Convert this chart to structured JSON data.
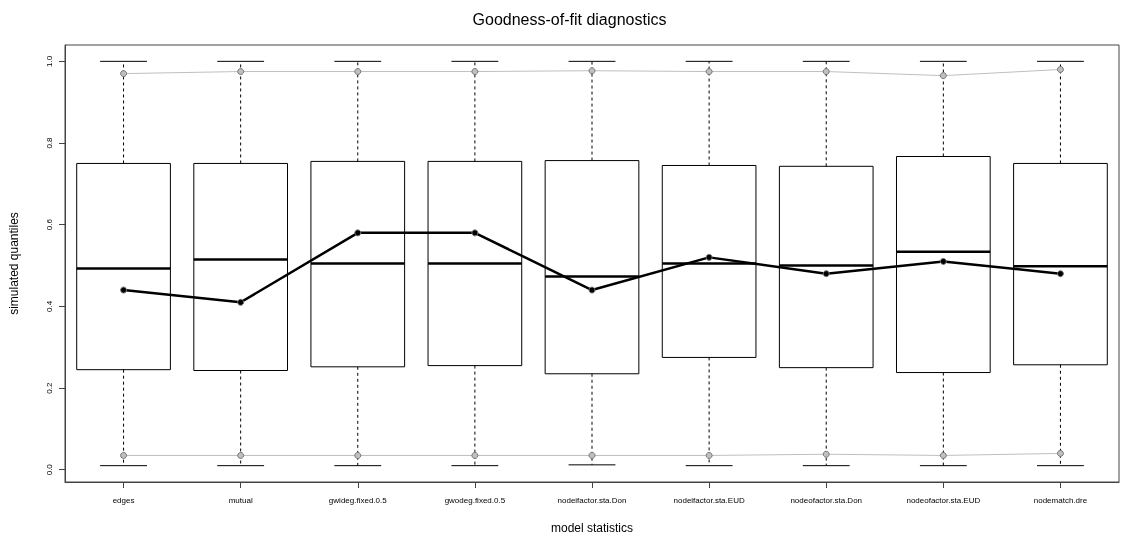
{
  "chart_data": {
    "type": "box",
    "title": "Goodness-of-fit diagnostics",
    "xlabel": "model statistics",
    "ylabel": "simulated quantiles",
    "categories": [
      "edges",
      "mutual",
      "gwideg.fixed.0.5",
      "gwodeg.fixed.0.5",
      "nodeifactor.sta.Don",
      "nodeifactor.sta.EUD",
      "nodeofactor.sta.Don",
      "nodeofactor.sta.EUD",
      "nodematch.dre"
    ],
    "ylim": [
      -0.03,
      1.04
    ],
    "yticks": [
      {
        "value": 0,
        "label": "0.0"
      },
      0.2,
      0.4,
      0.6,
      0.8,
      {
        "value": 1,
        "label": "1.0"
      }
    ],
    "grid": false,
    "marker": "circle",
    "line_style": "solid",
    "series": [
      {
        "color": "#000000",
        "boxes": [
          {
            "low": 0.01,
            "q1": 0.245,
            "median": 0.493,
            "q3": 0.75,
            "high": 1.0
          },
          {
            "low": 0.01,
            "q1": 0.243,
            "median": 0.515,
            "q3": 0.75,
            "high": 1.0
          },
          {
            "low": 0.01,
            "q1": 0.252,
            "median": 0.505,
            "q3": 0.755,
            "high": 1.0
          },
          {
            "low": 0.01,
            "q1": 0.255,
            "median": 0.505,
            "q3": 0.755,
            "high": 1.0
          },
          {
            "low": 0.012,
            "q1": 0.235,
            "median": 0.473,
            "q3": 0.757,
            "high": 1.0
          },
          {
            "low": 0.01,
            "q1": 0.275,
            "median": 0.505,
            "q3": 0.745,
            "high": 1.0
          },
          {
            "low": 0.01,
            "q1": 0.25,
            "median": 0.5,
            "q3": 0.743,
            "high": 1.0
          },
          {
            "low": 0.01,
            "q1": 0.238,
            "median": 0.534,
            "q3": 0.767,
            "high": 1.0
          },
          {
            "low": 0.01,
            "q1": 0.257,
            "median": 0.498,
            "q3": 0.75,
            "high": 1.0
          }
        ]
      },
      {
        "type": "line",
        "color": "#bfbfbf",
        "values": [
          0.97,
          0.975,
          0.975,
          0.975,
          0.977,
          0.975,
          0.975,
          0.965,
          0.98
        ]
      },
      {
        "type": "line",
        "color": "#bfbfbf",
        "values": [
          0.035,
          0.035,
          0.035,
          0.035,
          0.035,
          0.035,
          0.038,
          0.035,
          0.04
        ]
      },
      {
        "type": "line",
        "color": "#000000",
        "values": [
          0.44,
          0.41,
          0.58,
          0.58,
          0.44,
          0.52,
          0.48,
          0.51,
          0.48
        ]
      }
    ]
  }
}
